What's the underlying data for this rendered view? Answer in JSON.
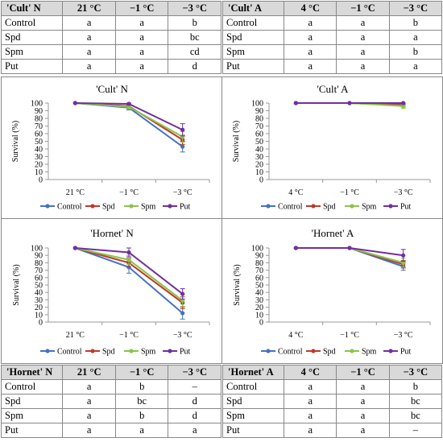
{
  "tables": {
    "cult_n": {
      "header": [
        "'Cult' N",
        "21 °C",
        "−1 °C",
        "−3 °C"
      ],
      "rows": [
        [
          "Control",
          "a",
          "a",
          "b"
        ],
        [
          "Spd",
          "a",
          "a",
          "bc"
        ],
        [
          "Spm",
          "a",
          "a",
          "cd"
        ],
        [
          "Put",
          "a",
          "a",
          "d"
        ]
      ]
    },
    "cult_a": {
      "header": [
        "'Cult' A",
        "4 °C",
        "−1 °C",
        "−3 °C"
      ],
      "rows": [
        [
          "Control",
          "a",
          "a",
          "b"
        ],
        [
          "Spd",
          "a",
          "a",
          "a"
        ],
        [
          "Spm",
          "a",
          "a",
          "b"
        ],
        [
          "Put",
          "a",
          "a",
          "a"
        ]
      ]
    },
    "hornet_n": {
      "header": [
        "'Hornet' N",
        "21 °C",
        "−1 °C",
        "−3 °C"
      ],
      "rows": [
        [
          "Control",
          "a",
          "b",
          "–"
        ],
        [
          "Spd",
          "a",
          "bc",
          "d"
        ],
        [
          "Spm",
          "a",
          "b",
          "d"
        ],
        [
          "Put",
          "a",
          "a",
          "a"
        ]
      ]
    },
    "hornet_a": {
      "header": [
        "'Hornet' A",
        "4 °C",
        "−1 °C",
        "−3 °C"
      ],
      "rows": [
        [
          "Control",
          "a",
          "a",
          "b"
        ],
        [
          "Spd",
          "a",
          "a",
          "bc"
        ],
        [
          "Spm",
          "a",
          "a",
          "bc"
        ],
        [
          "Put",
          "a",
          "a",
          "–"
        ]
      ]
    }
  },
  "colors": {
    "Control": "#4472c4",
    "Spd": "#c0392b",
    "Spm": "#8bc34a",
    "Put": "#7030a0"
  },
  "chart_data": [
    {
      "type": "line",
      "title": "'Cult' N",
      "ylabel": "Survival (%)",
      "ylim": [
        0,
        100
      ],
      "yticks": [
        0,
        10,
        20,
        30,
        40,
        50,
        60,
        70,
        80,
        90,
        100
      ],
      "categories": [
        "21 °C",
        "−1 °C",
        "−3 °C"
      ],
      "series": [
        {
          "name": "Control",
          "values": [
            100,
            94,
            43
          ],
          "err": [
            0,
            3,
            7
          ]
        },
        {
          "name": "Spd",
          "values": [
            100,
            96,
            52
          ],
          "err": [
            0,
            2,
            6
          ]
        },
        {
          "name": "Spm",
          "values": [
            100,
            95,
            56
          ],
          "err": [
            0,
            3,
            7
          ]
        },
        {
          "name": "Put",
          "values": [
            100,
            99,
            65
          ],
          "err": [
            0,
            1,
            8
          ]
        }
      ]
    },
    {
      "type": "line",
      "title": "'Cult' A",
      "ylabel": "Survival (%)",
      "ylim": [
        0,
        100
      ],
      "yticks": [
        0,
        10,
        20,
        30,
        40,
        50,
        60,
        70,
        80,
        90,
        100
      ],
      "categories": [
        "4 °C",
        "−1 °C",
        "−3 °C"
      ],
      "series": [
        {
          "name": "Control",
          "values": [
            100,
            100,
            97
          ],
          "err": [
            0,
            0,
            2
          ]
        },
        {
          "name": "Spd",
          "values": [
            100,
            100,
            99
          ],
          "err": [
            0,
            0,
            1
          ]
        },
        {
          "name": "Spm",
          "values": [
            100,
            100,
            96
          ],
          "err": [
            0,
            0,
            3
          ]
        },
        {
          "name": "Put",
          "values": [
            100,
            100,
            100
          ],
          "err": [
            0,
            0,
            0
          ]
        }
      ]
    },
    {
      "type": "line",
      "title": "'Hornet' N",
      "ylabel": "Survival (%)",
      "ylim": [
        0,
        100
      ],
      "yticks": [
        0,
        10,
        20,
        30,
        40,
        50,
        60,
        70,
        80,
        90,
        100
      ],
      "categories": [
        "21 °C",
        "−1 °C",
        "−3 °C"
      ],
      "series": [
        {
          "name": "Control",
          "values": [
            100,
            74,
            12
          ],
          "err": [
            0,
            8,
            8
          ]
        },
        {
          "name": "Spd",
          "values": [
            100,
            80,
            26
          ],
          "err": [
            0,
            6,
            8
          ]
        },
        {
          "name": "Spm",
          "values": [
            100,
            84,
            29
          ],
          "err": [
            0,
            6,
            8
          ]
        },
        {
          "name": "Put",
          "values": [
            100,
            94,
            38
          ],
          "err": [
            0,
            6,
            7
          ]
        }
      ]
    },
    {
      "type": "line",
      "title": "'Hornet' A",
      "ylabel": "Survival (%)",
      "ylim": [
        0,
        100
      ],
      "yticks": [
        0,
        10,
        20,
        30,
        40,
        50,
        60,
        70,
        80,
        90,
        100
      ],
      "categories": [
        "4 °C",
        "−1 °C",
        "−3 °C"
      ],
      "series": [
        {
          "name": "Control",
          "values": [
            100,
            100,
            75
          ],
          "err": [
            0,
            0,
            5
          ]
        },
        {
          "name": "Spd",
          "values": [
            100,
            100,
            78
          ],
          "err": [
            0,
            0,
            5
          ]
        },
        {
          "name": "Spm",
          "values": [
            100,
            100,
            80
          ],
          "err": [
            0,
            0,
            6
          ]
        },
        {
          "name": "Put",
          "values": [
            100,
            100,
            90
          ],
          "err": [
            0,
            0,
            8
          ]
        }
      ]
    }
  ]
}
